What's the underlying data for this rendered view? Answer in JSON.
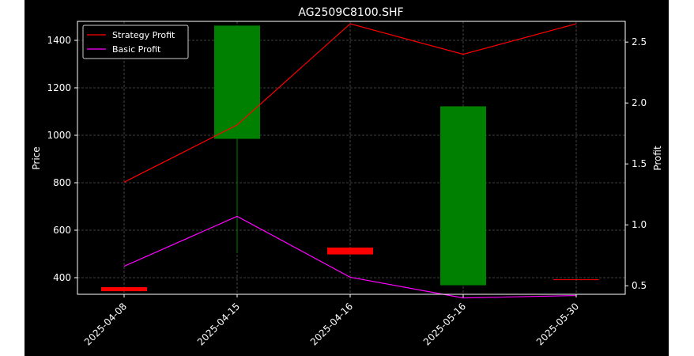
{
  "chart_data": {
    "type": "candlestick",
    "title": "AG2509C8100.SHF",
    "xlabel": "",
    "ylabel": "Price",
    "y2label": "Profit",
    "categories": [
      "2025-04-08",
      "2025-04-15",
      "2025-04-16",
      "2025-05-16",
      "2025-05-30"
    ],
    "ylim": [
      330,
      1480
    ],
    "y2lim": [
      0.43,
      2.67
    ],
    "yticks": [
      400,
      600,
      800,
      1000,
      1200,
      1400
    ],
    "y2ticks": [
      0.5,
      1.0,
      1.5,
      2.0,
      2.5
    ],
    "candles": [
      {
        "open": 360,
        "close": 343,
        "high": 360,
        "low": 343,
        "color": "#ff0000"
      },
      {
        "open": 985,
        "close": 1462,
        "high": 1462,
        "low": 505,
        "color": "#008000"
      },
      {
        "open": 527,
        "close": 498,
        "high": 527,
        "low": 498,
        "color": "#ff0000"
      },
      {
        "open": 368,
        "close": 1122,
        "high": 1122,
        "low": 368,
        "color": "#008000"
      },
      {
        "open": 393,
        "close": 390,
        "high": 393,
        "low": 390,
        "color": "#ff0000"
      }
    ],
    "series": [
      {
        "name": "Strategy Profit",
        "axis": "right",
        "color": "#ff0000",
        "values": [
          1.35,
          1.82,
          2.65,
          2.4,
          2.65
        ]
      },
      {
        "name": "Basic Profit",
        "axis": "right",
        "color": "#ff00ff",
        "values": [
          0.66,
          1.07,
          0.57,
          0.4,
          0.42
        ]
      }
    ],
    "grid": true,
    "legend": "top-left"
  }
}
